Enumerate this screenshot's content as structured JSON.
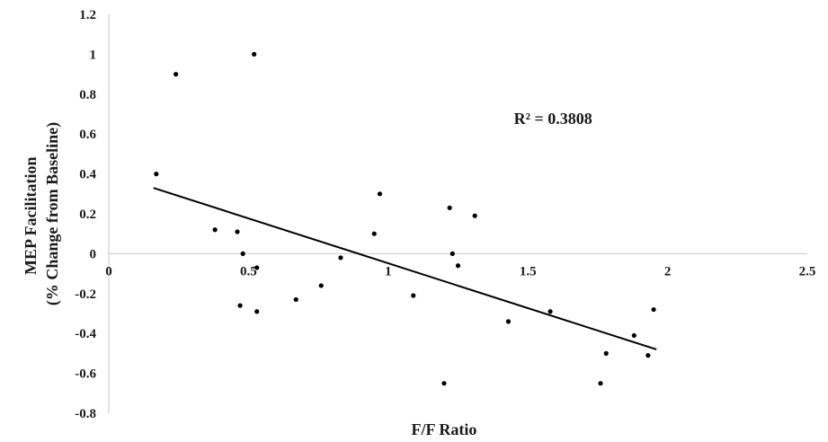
{
  "chart_data": {
    "type": "scatter",
    "xlabel": "F/F Ratio",
    "ylabel_lines": [
      "MEP Facilitation",
      "(% Change from Baseline)"
    ],
    "xlim": [
      0,
      2.5
    ],
    "ylim": [
      -0.8,
      1.2
    ],
    "x_ticks": [
      {
        "value": 0,
        "label": "0"
      },
      {
        "value": 0.5,
        "label": "0.5"
      },
      {
        "value": 1,
        "label": "1"
      },
      {
        "value": 1.5,
        "label": "1.5"
      },
      {
        "value": 2,
        "label": "2"
      },
      {
        "value": 2.5,
        "label": "2.5"
      }
    ],
    "y_ticks": [
      {
        "value": 1.2,
        "label": "1.2"
      },
      {
        "value": 1,
        "label": "1"
      },
      {
        "value": 0.8,
        "label": "0.8"
      },
      {
        "value": 0.6,
        "label": "0.6"
      },
      {
        "value": 0.4,
        "label": "0.4"
      },
      {
        "value": 0.2,
        "label": "0.2"
      },
      {
        "value": 0,
        "label": "0"
      },
      {
        "value": -0.2,
        "label": "-0.2"
      },
      {
        "value": -0.4,
        "label": "-0.4"
      },
      {
        "value": -0.6,
        "label": "-0.6"
      },
      {
        "value": -0.8,
        "label": "-0.8"
      }
    ],
    "points": [
      {
        "x": 0.17,
        "y": 0.4
      },
      {
        "x": 0.24,
        "y": 0.9
      },
      {
        "x": 0.52,
        "y": 1.0
      },
      {
        "x": 0.38,
        "y": 0.12
      },
      {
        "x": 0.46,
        "y": 0.11
      },
      {
        "x": 0.48,
        "y": 0.0
      },
      {
        "x": 0.53,
        "y": -0.07
      },
      {
        "x": 0.47,
        "y": -0.26
      },
      {
        "x": 0.53,
        "y": -0.29
      },
      {
        "x": 0.67,
        "y": -0.23
      },
      {
        "x": 0.76,
        "y": -0.16
      },
      {
        "x": 0.83,
        "y": -0.02
      },
      {
        "x": 0.95,
        "y": 0.1
      },
      {
        "x": 0.97,
        "y": 0.3
      },
      {
        "x": 1.09,
        "y": -0.21
      },
      {
        "x": 1.22,
        "y": 0.23
      },
      {
        "x": 1.23,
        "y": 0.0
      },
      {
        "x": 1.25,
        "y": -0.06
      },
      {
        "x": 1.31,
        "y": 0.19
      },
      {
        "x": 1.2,
        "y": -0.65
      },
      {
        "x": 1.43,
        "y": -0.34
      },
      {
        "x": 1.58,
        "y": -0.29
      },
      {
        "x": 1.76,
        "y": -0.65
      },
      {
        "x": 1.78,
        "y": -0.5
      },
      {
        "x": 1.88,
        "y": -0.41
      },
      {
        "x": 1.93,
        "y": -0.51
      },
      {
        "x": 1.95,
        "y": -0.28
      }
    ],
    "trendline": {
      "x1": 0.16,
      "y1": 0.33,
      "x2": 1.96,
      "y2": -0.48
    },
    "annotation": "R² = 0.3808",
    "annotation_position": {
      "x": 1.45,
      "y": 0.65
    },
    "grid": false,
    "legend": "none",
    "colors": {
      "points": "#000000",
      "trendline": "#000000",
      "axis": "#c8c8c8",
      "text": "#1a1a1a"
    }
  }
}
